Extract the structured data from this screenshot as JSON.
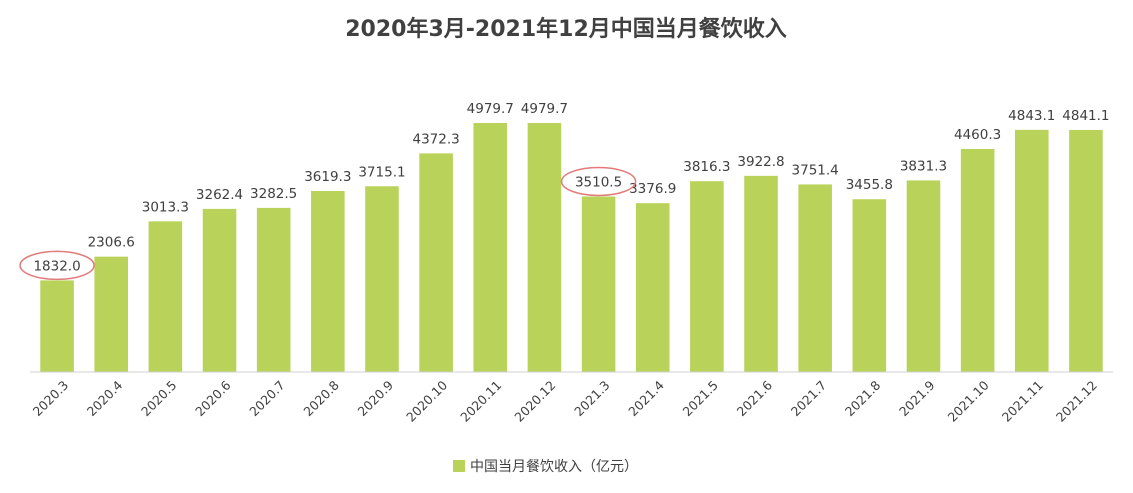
{
  "chart_data": {
    "type": "bar",
    "title": "2020年3月-2021年12月中国当月餐饮收入",
    "xlabel": "",
    "ylabel": "",
    "ylim": [
      0,
      5200
    ],
    "categories": [
      "2020.3",
      "2020.4",
      "2020.5",
      "2020.6",
      "2020.7",
      "2020.8",
      "2020.9",
      "2020.10",
      "2020.11",
      "2020.12",
      "2021.3",
      "2021.4",
      "2021.5",
      "2021.6",
      "2021.7",
      "2021.8",
      "2021.9",
      "2021.10",
      "2021.11",
      "2021.12"
    ],
    "series": [
      {
        "name": "中国当月餐饮收入（亿元）",
        "color": "#b9d25a",
        "values": [
          1832.0,
          2306.6,
          3013.3,
          3262.4,
          3282.5,
          3619.3,
          3715.1,
          4372.3,
          4979.7,
          4979.7,
          3510.5,
          3376.9,
          3816.3,
          3922.8,
          3751.4,
          3455.8,
          3831.3,
          4460.3,
          4843.1,
          4841.1
        ],
        "labels": [
          "1832.0",
          "2306.6",
          "3013.3",
          "3262.4",
          "3282.5",
          "3619.3",
          "3715.1",
          "4372.3",
          "4979.7",
          "4979.7",
          "3510.5",
          "3376.9",
          "3816.3",
          "3922.8",
          "3751.4",
          "3455.8",
          "3831.3",
          "4460.3",
          "4843.1",
          "4841.1"
        ]
      }
    ],
    "highlighted_indices": [
      0,
      10
    ],
    "highlight_color": "#e27a7a",
    "legend_position": "bottom",
    "grid": false,
    "axis_color": "#d0d0d0",
    "text_color": "#404040"
  }
}
